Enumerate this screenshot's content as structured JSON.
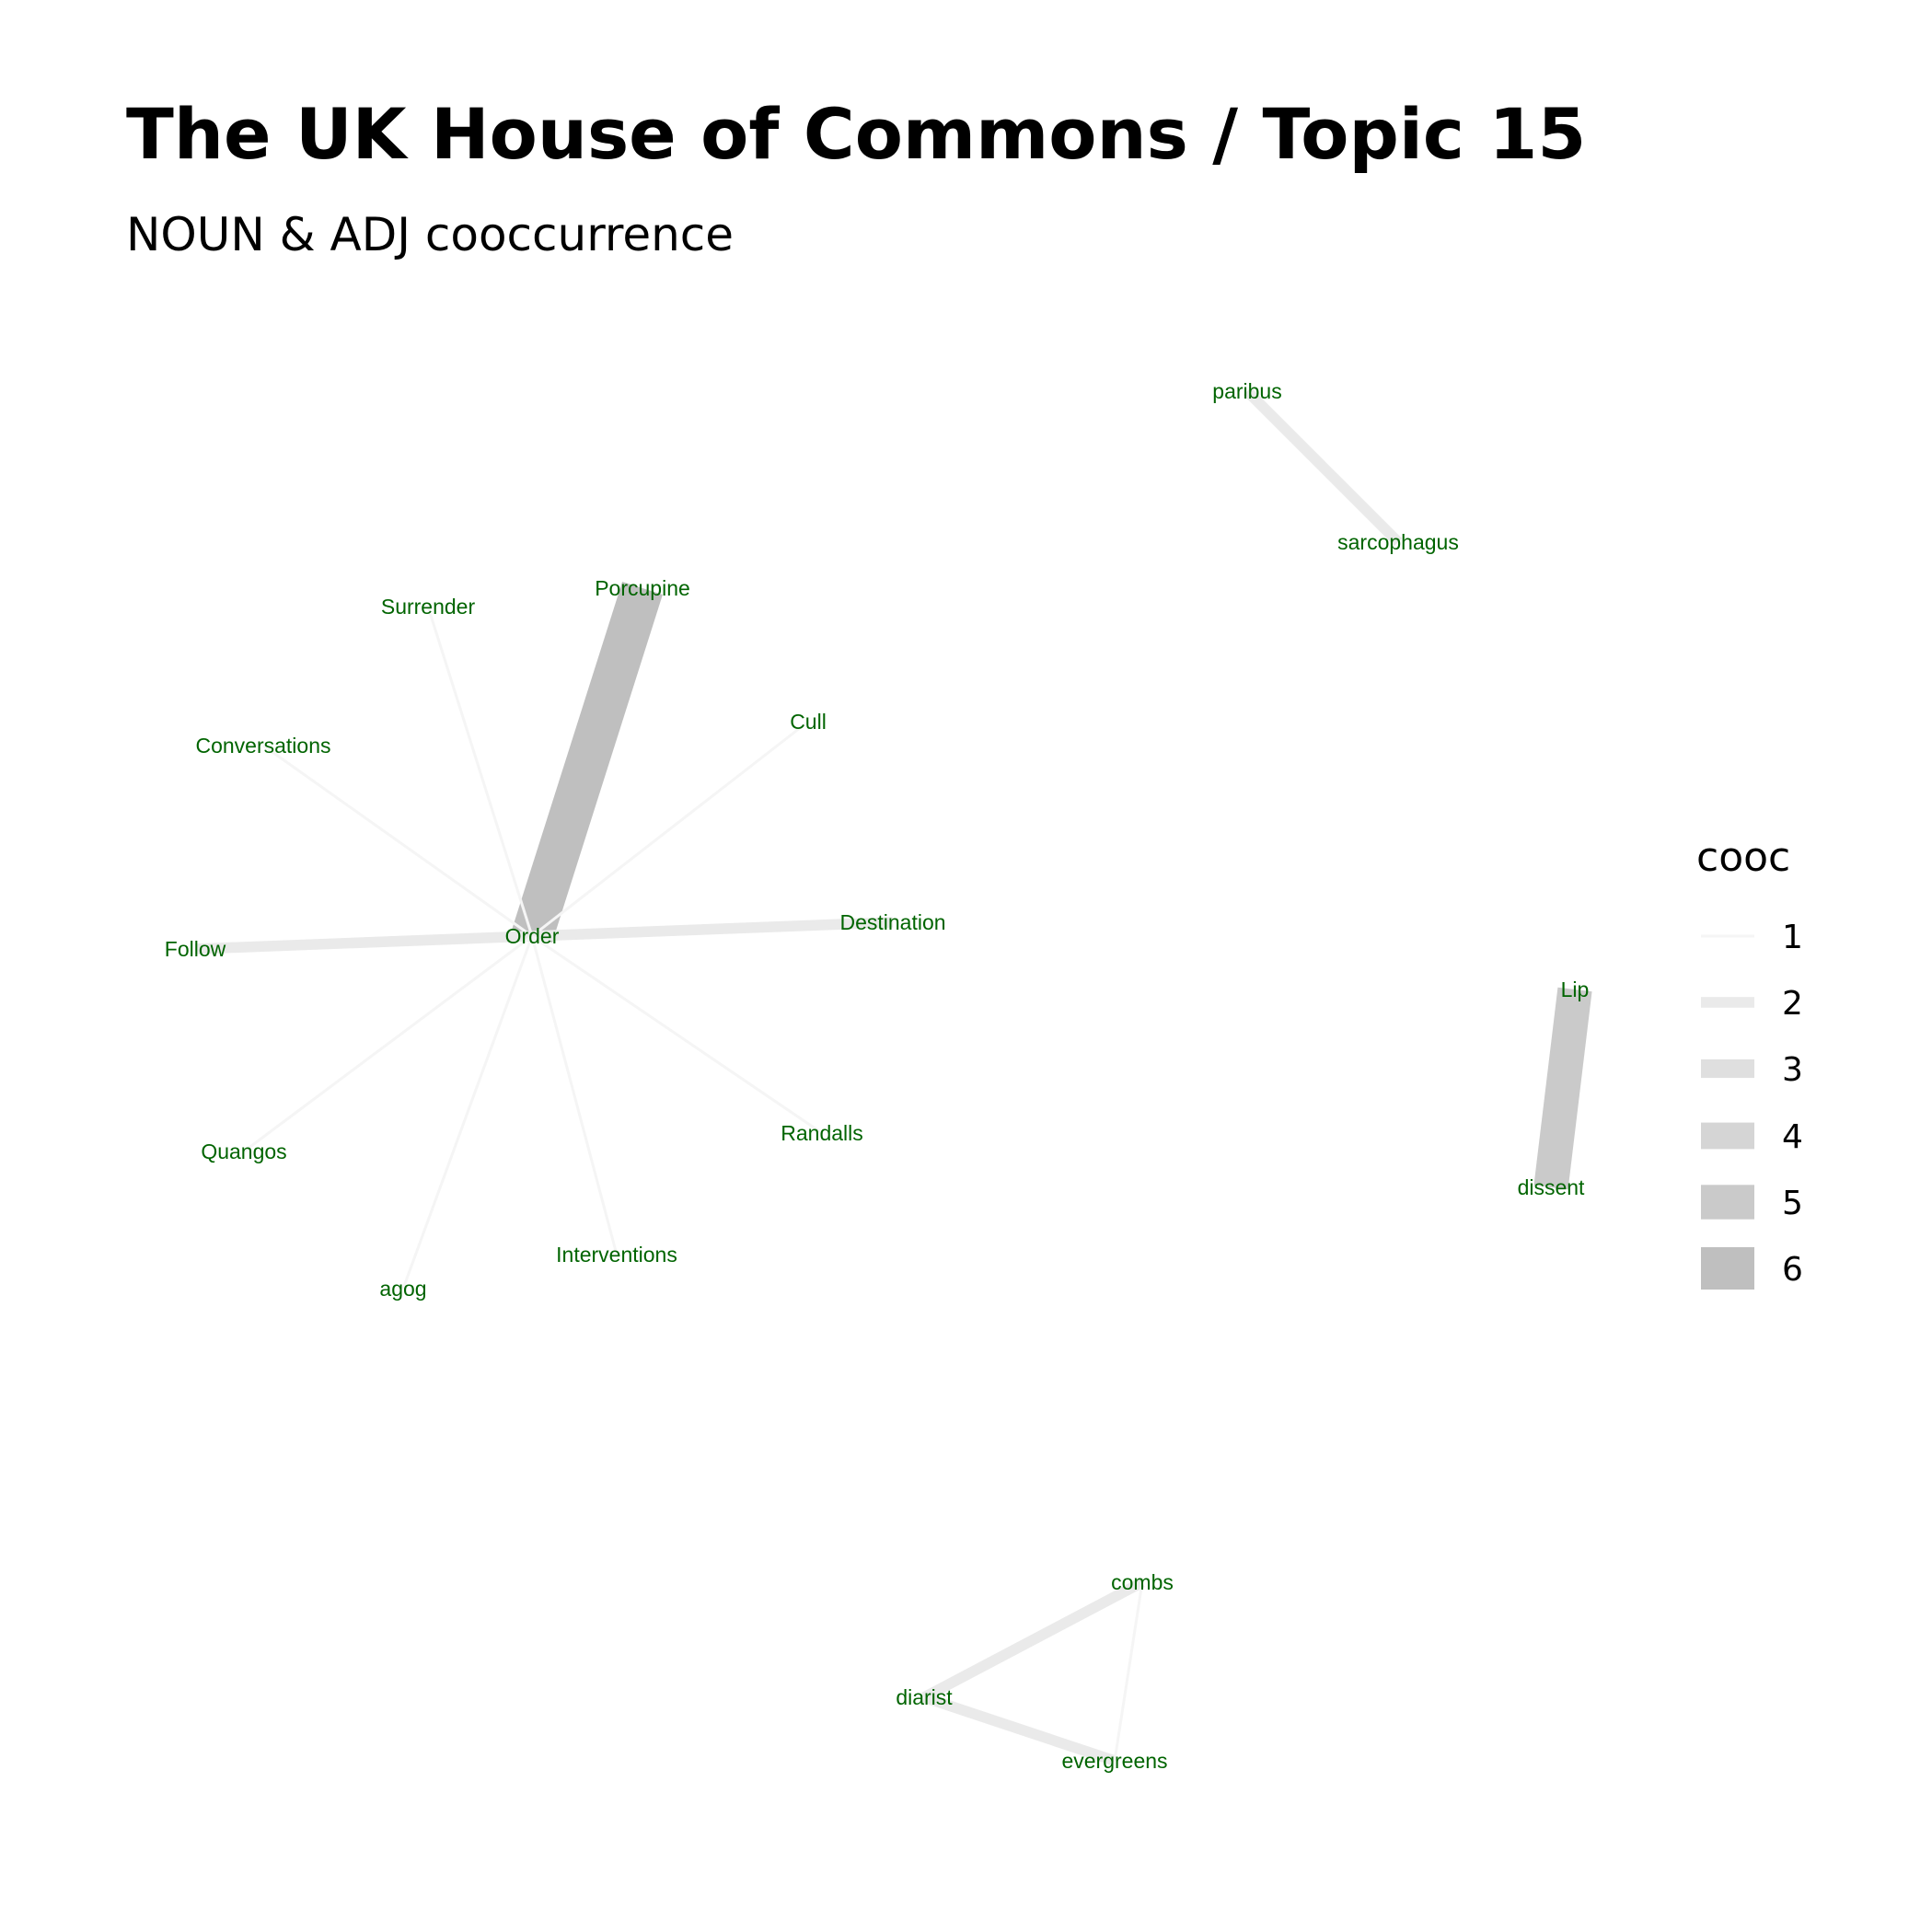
{
  "title": "The UK House of Commons / Topic 15",
  "subtitle": "NOUN & ADJ cooccurrence",
  "label_color": "#006400",
  "legend": {
    "title": "cooc",
    "items": [
      "1",
      "2",
      "3",
      "4",
      "5",
      "6"
    ]
  },
  "nodes": [
    {
      "id": "Order"
    },
    {
      "id": "Porcupine"
    },
    {
      "id": "Surrender"
    },
    {
      "id": "Conversations"
    },
    {
      "id": "Cull"
    },
    {
      "id": "Destination"
    },
    {
      "id": "Follow"
    },
    {
      "id": "Quangos"
    },
    {
      "id": "agog"
    },
    {
      "id": "Interventions"
    },
    {
      "id": "Randalls"
    },
    {
      "id": "paribus"
    },
    {
      "id": "sarcophagus"
    },
    {
      "id": "Lip"
    },
    {
      "id": "dissent"
    },
    {
      "id": "combs"
    },
    {
      "id": "diarist"
    },
    {
      "id": "evergreens"
    }
  ],
  "edges": [
    {
      "from": "Order",
      "to": "Porcupine",
      "cooc": 6
    },
    {
      "from": "Order",
      "to": "Surrender",
      "cooc": 1
    },
    {
      "from": "Order",
      "to": "Conversations",
      "cooc": 1
    },
    {
      "from": "Order",
      "to": "Cull",
      "cooc": 1
    },
    {
      "from": "Order",
      "to": "Destination",
      "cooc": 2
    },
    {
      "from": "Order",
      "to": "Follow",
      "cooc": 2
    },
    {
      "from": "Order",
      "to": "Quangos",
      "cooc": 1
    },
    {
      "from": "Order",
      "to": "agog",
      "cooc": 1
    },
    {
      "from": "Order",
      "to": "Interventions",
      "cooc": 1
    },
    {
      "from": "Order",
      "to": "Randalls",
      "cooc": 1
    },
    {
      "from": "paribus",
      "to": "sarcophagus",
      "cooc": 2
    },
    {
      "from": "Lip",
      "to": "dissent",
      "cooc": 5
    },
    {
      "from": "combs",
      "to": "diarist",
      "cooc": 2
    },
    {
      "from": "diarist",
      "to": "evergreens",
      "cooc": 2
    },
    {
      "from": "combs",
      "to": "evergreens",
      "cooc": 1
    }
  ]
}
